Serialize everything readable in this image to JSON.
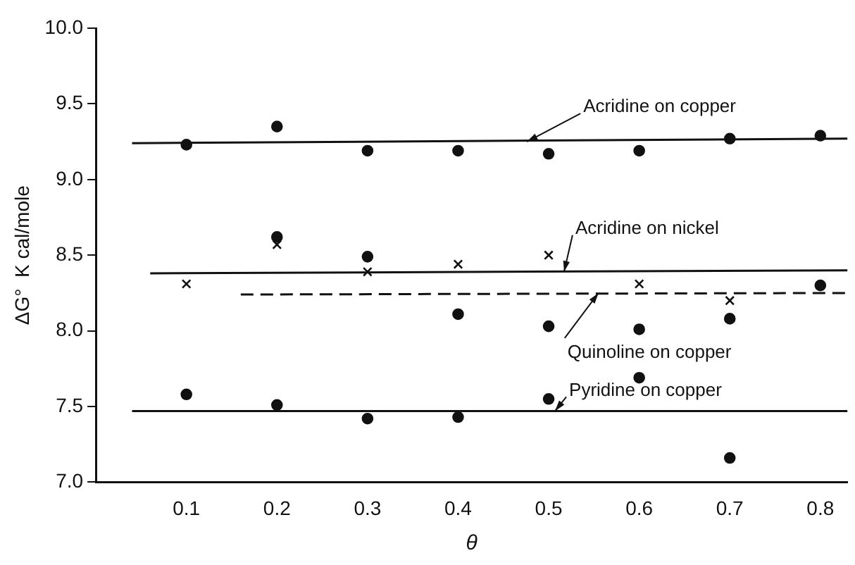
{
  "chart_data": {
    "type": "scatter",
    "xlabel": "θ",
    "ylabel": "ΔG°  K cal/mole",
    "xlim": [
      0,
      0.83
    ],
    "xticks": [
      0.1,
      0.2,
      0.3,
      0.4,
      0.5,
      0.6,
      0.7,
      0.8
    ],
    "ylim": [
      7.0,
      10.0
    ],
    "yticks": [
      {
        "value": 7.0,
        "label": "7.0"
      },
      {
        "value": 7.5,
        "label": "7.5"
      },
      {
        "value": 8.0,
        "label": "8.0"
      },
      {
        "value": 8.5,
        "label": "8.5"
      },
      {
        "value": 9.0,
        "label": "9.0"
      },
      {
        "value": 9.5,
        "label": "9.5"
      },
      {
        "value": 10.0,
        "label": "10.0"
      }
    ],
    "grid": false,
    "legend": false,
    "series": [
      {
        "marker": "circle",
        "color": "#111111",
        "x": [
          0.1,
          0.2,
          0.3,
          0.4,
          0.5,
          0.6,
          0.7,
          0.8
        ],
        "values": [
          9.23,
          9.35,
          9.19,
          9.19,
          9.17,
          9.19,
          9.27,
          9.29
        ]
      },
      {
        "marker": "cross",
        "color": "#111111",
        "x": [
          0.1,
          0.2,
          0.3,
          0.4,
          0.5,
          0.6,
          0.7
        ],
        "values": [
          8.31,
          8.57,
          8.39,
          8.44,
          8.5,
          8.31,
          8.2
        ]
      },
      {
        "marker": "circle",
        "color": "#111111",
        "x": [
          0.2,
          0.3,
          0.4,
          0.5,
          0.6,
          0.6,
          0.7
        ],
        "values": [
          8.62,
          8.49,
          8.11,
          8.03,
          8.01,
          7.69,
          8.08
        ]
      },
      {
        "marker": "circle",
        "color": "#111111",
        "x": [
          0.8
        ],
        "values": [
          8.3
        ]
      },
      {
        "marker": "circle",
        "color": "#111111",
        "x": [
          0.1,
          0.2,
          0.3,
          0.4,
          0.5,
          0.7
        ],
        "values": [
          7.58,
          7.51,
          7.42,
          7.43,
          7.55,
          7.16
        ]
      },
      {
        "type": "line",
        "marker": "none",
        "line_style": "solid",
        "color": "#111111",
        "x": [
          0.04,
          0.83
        ],
        "values": [
          9.24,
          9.27
        ]
      },
      {
        "type": "line",
        "marker": "none",
        "line_style": "solid",
        "color": "#111111",
        "x": [
          0.06,
          0.83
        ],
        "values": [
          8.38,
          8.4
        ]
      },
      {
        "type": "line",
        "marker": "none",
        "line_style": "dashed",
        "color": "#111111",
        "x": [
          0.16,
          0.83
        ],
        "values": [
          8.24,
          8.25
        ]
      },
      {
        "type": "line",
        "marker": "none",
        "line_style": "solid",
        "color": "#111111",
        "x": [
          0.04,
          0.83
        ],
        "values": [
          7.47,
          7.47
        ]
      }
    ],
    "annotations": [
      {
        "text": "Acridine on copper",
        "x": 0.476,
        "y": 9.25
      },
      {
        "text": "Acridine on nickel",
        "x": 0.517,
        "y": 8.39
      },
      {
        "text": "Quinoline on copper",
        "x": 0.555,
        "y": 8.25
      },
      {
        "text": "Pyridine on copper",
        "x": 0.507,
        "y": 7.47
      }
    ]
  }
}
